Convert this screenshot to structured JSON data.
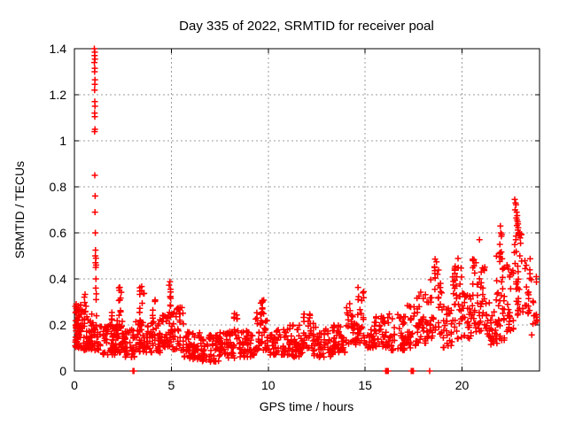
{
  "chart_data": {
    "type": "scatter",
    "title": "Day 335 of 2022, SRMTID for receiver poal",
    "xlabel": "GPS time / hours",
    "ylabel": "SRMTID / TECUs",
    "xlim": [
      0,
      24
    ],
    "ylim": [
      0,
      1.4
    ],
    "xticks": [
      0,
      5,
      10,
      15,
      20
    ],
    "xtick_labels": [
      "0",
      "5",
      "10",
      "15",
      "20"
    ],
    "yticks": [
      0,
      0.2,
      0.4,
      0.6,
      0.8,
      1,
      1.2,
      1.4
    ],
    "ytick_labels": [
      "0",
      "0.2",
      "0.4",
      "0.6",
      "0.8",
      "1",
      "1.2",
      "1.4"
    ],
    "grid": true,
    "legend": "none",
    "marker": {
      "glyph": "plus",
      "color": "#ff0000",
      "size": 7,
      "stroke_width": 1.5
    },
    "colors": {
      "points": "#ff0000",
      "grid": "#9c9c9c",
      "frame": "#000000",
      "text": "#000000",
      "background": "#ffffff"
    },
    "features": {
      "morning_spike": {
        "x_hours": 1.05,
        "y_max": 1.4,
        "y_min": 0.24
      },
      "evening_rise": {
        "x_start": 18.5,
        "x_end": 23.9,
        "y_max": 0.745
      },
      "midday_band": {
        "y_low": 0.04,
        "y_high": 0.25
      },
      "zero_value_marks_hours": [
        3.0,
        16.1,
        17.4,
        18.3
      ]
    },
    "spike_points": [
      [
        1.03,
        1.4
      ],
      [
        1.05,
        1.385
      ],
      [
        1.04,
        1.37
      ],
      [
        1.06,
        1.355
      ],
      [
        1.03,
        1.34
      ],
      [
        1.05,
        1.315
      ],
      [
        1.04,
        1.3
      ],
      [
        1.06,
        1.265
      ],
      [
        1.05,
        1.245
      ],
      [
        1.04,
        1.22
      ],
      [
        1.05,
        1.17
      ],
      [
        1.06,
        1.15
      ],
      [
        1.04,
        1.12
      ],
      [
        1.05,
        1.105
      ],
      [
        1.06,
        1.05
      ],
      [
        1.04,
        1.04
      ],
      [
        1.05,
        0.85
      ],
      [
        1.07,
        0.76
      ],
      [
        1.06,
        0.69
      ],
      [
        1.08,
        0.6
      ],
      [
        1.09,
        0.525
      ],
      [
        1.08,
        0.5
      ],
      [
        1.11,
        0.49
      ],
      [
        1.09,
        0.47
      ],
      [
        1.12,
        0.46
      ],
      [
        1.1,
        0.45
      ],
      [
        1.11,
        0.4
      ],
      [
        1.1,
        0.36
      ],
      [
        1.13,
        0.335
      ],
      [
        1.12,
        0.31
      ],
      [
        1.14,
        0.24
      ]
    ],
    "high_points": [
      [
        20.9,
        0.57
      ],
      [
        22.72,
        0.745
      ],
      [
        22.76,
        0.73
      ],
      [
        22.79,
        0.722
      ],
      [
        22.74,
        0.7
      ],
      [
        22.82,
        0.69
      ],
      [
        22.85,
        0.675
      ],
      [
        22.8,
        0.665
      ],
      [
        22.84,
        0.656
      ],
      [
        22.87,
        0.648
      ],
      [
        22.89,
        0.639
      ],
      [
        22.83,
        0.632
      ],
      [
        22.9,
        0.622
      ],
      [
        22.88,
        0.612
      ],
      [
        22.92,
        0.601
      ],
      [
        22.95,
        0.592
      ],
      [
        23.0,
        0.578
      ],
      [
        23.02,
        0.555
      ],
      [
        21.98,
        0.63
      ],
      [
        22.0,
        0.6
      ],
      [
        22.03,
        0.585
      ],
      [
        21.95,
        0.55
      ]
    ],
    "zero_points": [
      3.02,
      3.07,
      16.06,
      16.1,
      16.14,
      16.19,
      17.38,
      17.43,
      17.49,
      18.33
    ],
    "clusters_format": "[x_start_h, x_end_h, count, y_min_TECU, y_max_TECU, bottom_bias_power]",
    "clusters": [
      [
        0.02,
        0.45,
        55,
        0.1,
        0.29,
        1.4
      ],
      [
        0.05,
        0.25,
        12,
        0.17,
        0.3,
        1.0
      ],
      [
        0.45,
        0.92,
        50,
        0.09,
        0.26,
        1.5
      ],
      [
        0.5,
        0.62,
        8,
        0.2,
        0.35,
        1.0
      ],
      [
        0.92,
        1.45,
        25,
        0.09,
        0.21,
        1.4
      ],
      [
        1.45,
        2.1,
        55,
        0.07,
        0.2,
        1.5
      ],
      [
        1.82,
        1.95,
        7,
        0.17,
        0.28,
        1.0
      ],
      [
        2.1,
        2.5,
        35,
        0.08,
        0.22,
        1.4
      ],
      [
        2.28,
        2.44,
        12,
        0.18,
        0.37,
        1.0
      ],
      [
        2.5,
        3.15,
        45,
        0.06,
        0.18,
        1.5
      ],
      [
        3.15,
        3.75,
        40,
        0.08,
        0.22,
        1.4
      ],
      [
        3.33,
        3.62,
        14,
        0.19,
        0.38,
        1.0
      ],
      [
        3.75,
        4.45,
        45,
        0.08,
        0.23,
        1.5
      ],
      [
        4.02,
        4.18,
        7,
        0.18,
        0.31,
        1.0
      ],
      [
        4.45,
        5.05,
        45,
        0.1,
        0.26,
        1.4
      ],
      [
        4.82,
        5.0,
        9,
        0.28,
        0.39,
        1.0
      ],
      [
        5.05,
        5.65,
        40,
        0.09,
        0.3,
        1.6
      ],
      [
        5.65,
        6.5,
        55,
        0.05,
        0.17,
        1.4
      ],
      [
        6.5,
        7.5,
        60,
        0.04,
        0.16,
        1.4
      ],
      [
        7.5,
        8.3,
        50,
        0.05,
        0.18,
        1.4
      ],
      [
        8.2,
        8.5,
        10,
        0.14,
        0.26,
        1.0
      ],
      [
        8.5,
        9.3,
        50,
        0.06,
        0.18,
        1.4
      ],
      [
        9.3,
        10.0,
        45,
        0.09,
        0.29,
        1.5
      ],
      [
        9.5,
        9.8,
        10,
        0.22,
        0.31,
        1.0
      ],
      [
        10.0,
        10.9,
        50,
        0.07,
        0.19,
        1.4
      ],
      [
        10.9,
        11.8,
        55,
        0.06,
        0.2,
        1.4
      ],
      [
        11.8,
        12.35,
        35,
        0.09,
        0.27,
        1.4
      ],
      [
        12.35,
        13.35,
        55,
        0.06,
        0.19,
        1.4
      ],
      [
        13.35,
        14.0,
        40,
        0.08,
        0.2,
        1.4
      ],
      [
        14.0,
        14.5,
        28,
        0.11,
        0.3,
        1.3
      ],
      [
        14.6,
        14.95,
        16,
        0.14,
        0.39,
        1.1
      ],
      [
        14.5,
        15.35,
        32,
        0.1,
        0.22,
        1.4
      ],
      [
        15.35,
        16.05,
        38,
        0.1,
        0.24,
        1.4
      ],
      [
        16.05,
        17.05,
        50,
        0.09,
        0.25,
        1.4
      ],
      [
        17.05,
        17.65,
        32,
        0.1,
        0.3,
        1.4
      ],
      [
        17.65,
        18.15,
        32,
        0.12,
        0.35,
        1.3
      ],
      [
        18.15,
        18.5,
        22,
        0.14,
        0.4,
        1.2
      ],
      [
        18.5,
        19.0,
        26,
        0.15,
        0.44,
        1.2
      ],
      [
        18.55,
        18.72,
        7,
        0.4,
        0.49,
        1.0
      ],
      [
        19.0,
        19.5,
        26,
        0.1,
        0.28,
        1.3
      ],
      [
        19.5,
        20.0,
        30,
        0.14,
        0.45,
        1.3
      ],
      [
        19.6,
        19.85,
        7,
        0.42,
        0.52,
        1.0
      ],
      [
        20.0,
        20.5,
        30,
        0.14,
        0.34,
        1.3
      ],
      [
        20.5,
        21.2,
        48,
        0.17,
        0.5,
        1.3
      ],
      [
        21.2,
        21.75,
        30,
        0.11,
        0.3,
        1.3
      ],
      [
        21.75,
        22.3,
        35,
        0.12,
        0.5,
        1.3
      ],
      [
        21.9,
        22.1,
        8,
        0.45,
        0.63,
        1.0
      ],
      [
        22.3,
        22.68,
        25,
        0.17,
        0.46,
        1.2
      ],
      [
        22.68,
        23.1,
        30,
        0.24,
        0.6,
        1.1
      ],
      [
        23.1,
        23.55,
        20,
        0.24,
        0.49,
        1.2
      ],
      [
        23.55,
        23.9,
        14,
        0.15,
        0.43,
        1.3
      ]
    ]
  }
}
